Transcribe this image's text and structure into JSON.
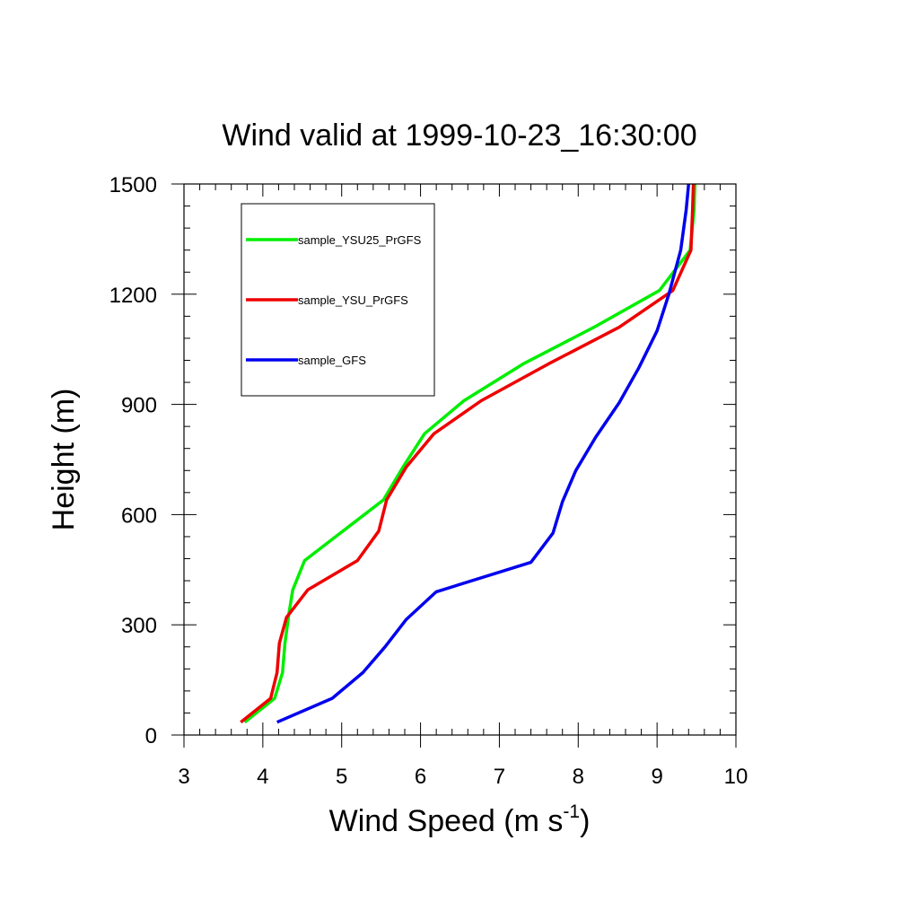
{
  "chart_data": {
    "type": "line",
    "title": "Wind valid at 1999-10-23_16:30:00",
    "xlabel": "Wind Speed (m s",
    "xlabel_sup": "-1",
    "xlabel_tail": ")",
    "ylabel": "Height (m)",
    "xlim": [
      3,
      10
    ],
    "ylim": [
      0,
      1500
    ],
    "xticks": [
      3,
      4,
      5,
      6,
      7,
      8,
      9,
      10
    ],
    "yticks": [
      0,
      300,
      600,
      900,
      1200,
      1500
    ],
    "grid": false,
    "legend_position": "top-left",
    "series": [
      {
        "name": "sample_YSU25_PrGFS",
        "color": "#00ee00",
        "points": [
          [
            3.77,
            35
          ],
          [
            4.15,
            100
          ],
          [
            4.25,
            170
          ],
          [
            4.28,
            250
          ],
          [
            4.33,
            330
          ],
          [
            4.38,
            395
          ],
          [
            4.53,
            475
          ],
          [
            5.53,
            640
          ],
          [
            5.78,
            730
          ],
          [
            6.05,
            820
          ],
          [
            6.55,
            910
          ],
          [
            7.3,
            1010
          ],
          [
            8.2,
            1110
          ],
          [
            9.03,
            1210
          ],
          [
            9.42,
            1320
          ],
          [
            9.47,
            1430
          ],
          [
            9.48,
            1500
          ]
        ]
      },
      {
        "name": "sample_YSU_PrGFS",
        "color": "#ee0000",
        "points": [
          [
            3.72,
            35
          ],
          [
            4.1,
            100
          ],
          [
            4.18,
            170
          ],
          [
            4.21,
            250
          ],
          [
            4.3,
            320
          ],
          [
            4.57,
            395
          ],
          [
            5.2,
            475
          ],
          [
            5.47,
            555
          ],
          [
            5.57,
            640
          ],
          [
            5.82,
            730
          ],
          [
            6.17,
            820
          ],
          [
            6.77,
            910
          ],
          [
            7.62,
            1010
          ],
          [
            8.52,
            1110
          ],
          [
            9.2,
            1210
          ],
          [
            9.43,
            1320
          ],
          [
            9.45,
            1430
          ],
          [
            9.46,
            1500
          ]
        ]
      },
      {
        "name": "sample_GFS",
        "color": "#0000ee",
        "points": [
          [
            4.18,
            35
          ],
          [
            4.88,
            100
          ],
          [
            5.27,
            170
          ],
          [
            5.55,
            240
          ],
          [
            5.82,
            315
          ],
          [
            6.2,
            390
          ],
          [
            7.4,
            470
          ],
          [
            7.68,
            550
          ],
          [
            7.8,
            635
          ],
          [
            7.97,
            720
          ],
          [
            8.22,
            810
          ],
          [
            8.52,
            905
          ],
          [
            8.77,
            1000
          ],
          [
            9.0,
            1100
          ],
          [
            9.15,
            1200
          ],
          [
            9.3,
            1320
          ],
          [
            9.37,
            1430
          ],
          [
            9.4,
            1500
          ]
        ]
      }
    ]
  }
}
